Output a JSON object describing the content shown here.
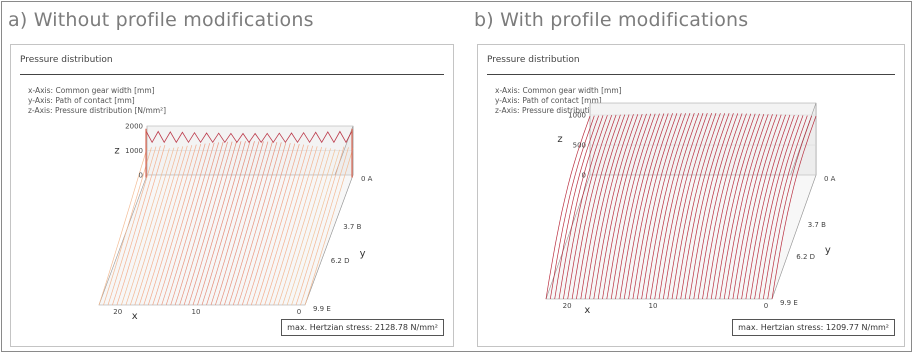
{
  "panels": [
    {
      "heading": "a) Without profile modifications",
      "title": "Pressure distribution",
      "axes_info": [
        "x-Axis: Common gear width [mm]",
        "y-Axis: Path of contact [mm]",
        "z-Axis: Pressure distribution [N/mm²]"
      ],
      "stress_label": "max. Hertzian stress: 2128.78 N/mm²"
    },
    {
      "heading": "b) With profile modifications",
      "title": "Pressure distribution",
      "axes_info": [
        "x-Axis: Common gear width [mm]",
        "y-Axis: Path of contact [mm]",
        "z-Axis: Pressure distribution [N/mm²]"
      ],
      "stress_label": "max. Hertzian stress: 1209.77 N/mm²"
    }
  ],
  "chart_data": [
    {
      "type": "surface3d",
      "title": "Pressure distribution",
      "xlabel": "x",
      "ylabel": "y",
      "zlabel": "z",
      "x_ticks": [
        "20",
        "10",
        "0"
      ],
      "y_ticks": [
        "0 A",
        "3.7 B",
        "6.2 D",
        "9.9 E"
      ],
      "z_ticks": [
        "0",
        "1000",
        "2000"
      ],
      "xlim": [
        0,
        28
      ],
      "ylim": [
        0,
        9.9
      ],
      "zlim": [
        0,
        2000
      ],
      "max_value": 2128.78,
      "grid": true,
      "colormap": [
        "#2c7fb8",
        "#7fcdbb",
        "#edf8b1",
        "#f4a582",
        "#b2182b"
      ]
    },
    {
      "type": "surface3d",
      "title": "Pressure distribution",
      "xlabel": "x",
      "ylabel": "y",
      "zlabel": "z",
      "x_ticks": [
        "20",
        "10",
        "0"
      ],
      "y_ticks": [
        "0 A",
        "3.7 B",
        "6.2 D",
        "9.9 E"
      ],
      "z_ticks": [
        "0",
        "500",
        "1000"
      ],
      "xlim": [
        0,
        28
      ],
      "ylim": [
        0,
        9.9
      ],
      "zlim": [
        0,
        1200
      ],
      "max_value": 1209.77,
      "grid": true,
      "colormap": [
        "#2c7fb8",
        "#7fcdbb",
        "#edf8b1",
        "#f4a582",
        "#b2182b"
      ]
    }
  ]
}
